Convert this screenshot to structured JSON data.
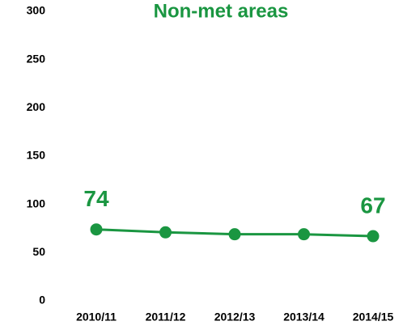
{
  "chart_data": {
    "type": "line",
    "title": "Non-met areas",
    "categories": [
      "2010/11",
      "2011/12",
      "2012/13",
      "2013/14",
      "2014/15"
    ],
    "series": [
      {
        "name": "Non-met areas",
        "color": "#1a9641",
        "values": [
          74,
          71,
          69,
          69,
          67
        ],
        "value_labels": [
          "74",
          null,
          null,
          null,
          "67"
        ]
      }
    ],
    "ylim": [
      0,
      300
    ],
    "yticks": [
      0,
      50,
      100,
      150,
      200,
      250,
      300
    ],
    "grid": false,
    "legend": false
  }
}
